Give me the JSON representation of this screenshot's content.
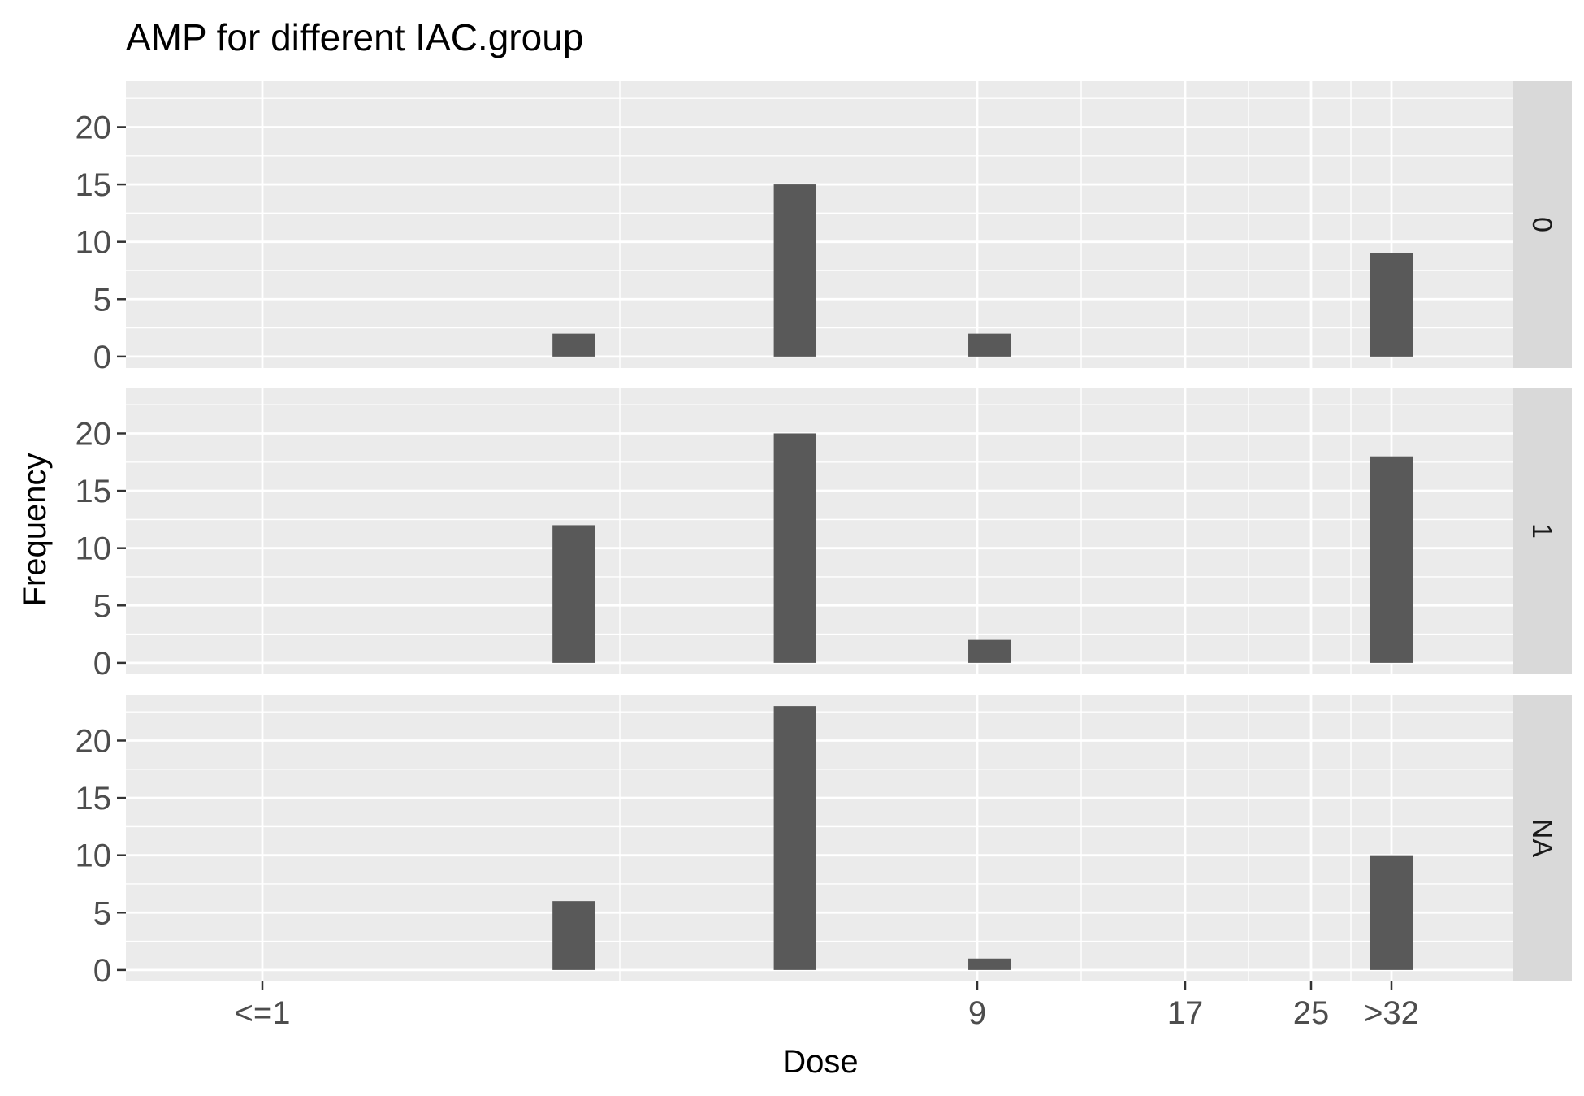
{
  "chart_data": {
    "type": "bar",
    "title": "AMP for different IAC.group",
    "xlabel": "Dose",
    "ylabel": "Frequency",
    "x_ticks": [
      "<=1",
      "9",
      "17",
      "25",
      ">32"
    ],
    "y_ticks": [
      "0",
      "5",
      "10",
      "15",
      "20"
    ],
    "ylim": [
      -1,
      24
    ],
    "grid": true,
    "panels": [
      {
        "label": "0",
        "bars": [
          {
            "x": 3.5,
            "value": 2
          },
          {
            "x": 6.2,
            "value": 15
          },
          {
            "x": 9.4,
            "value": 2
          },
          {
            "x": 33.5,
            "value": 9
          }
        ]
      },
      {
        "label": "1",
        "bars": [
          {
            "x": 3.5,
            "value": 12
          },
          {
            "x": 6.2,
            "value": 20
          },
          {
            "x": 9.4,
            "value": 2
          },
          {
            "x": 33.5,
            "value": 18
          }
        ]
      },
      {
        "label": "NA",
        "bars": [
          {
            "x": 3.5,
            "value": 6
          },
          {
            "x": 6.2,
            "value": 23
          },
          {
            "x": 9.4,
            "value": 1
          },
          {
            "x": 33.5,
            "value": 10
          }
        ]
      }
    ]
  }
}
